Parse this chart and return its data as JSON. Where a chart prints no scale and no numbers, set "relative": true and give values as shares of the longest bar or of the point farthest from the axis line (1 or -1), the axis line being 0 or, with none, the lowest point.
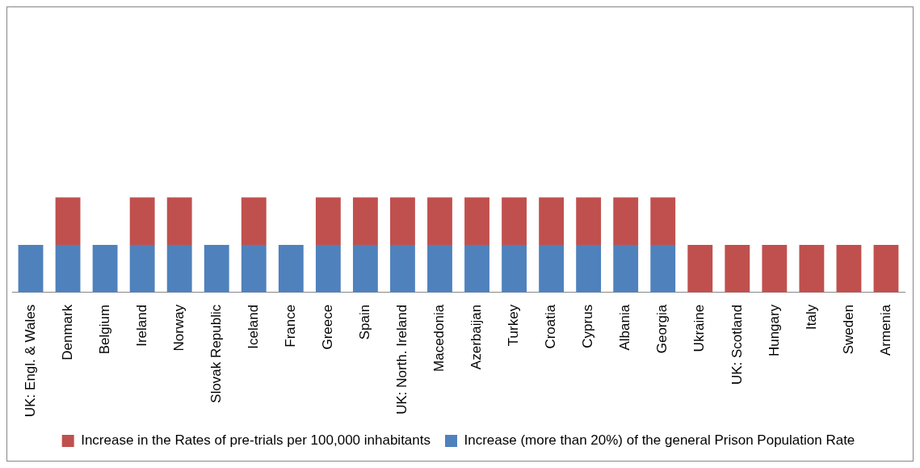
{
  "chart_data": {
    "type": "bar",
    "stacked": true,
    "relative": true,
    "legend": "bottom",
    "categories": [
      "UK: Engl. & Wales",
      "Denmark",
      "Belgium",
      "Ireland",
      "Norway",
      "Slovak Republic",
      "Iceland",
      "France",
      "Greece",
      "Spain",
      "UK: North. Ireland",
      "Macedonia",
      "Azerbaijan",
      "Turkey",
      "Croatia",
      "Cyprus",
      "Albania",
      "Georgia",
      "Ukraine",
      "UK: Scotland",
      "Hungary",
      "Italy",
      "Sweden",
      "Armenia"
    ],
    "series": [
      {
        "name": "Increase (more than 20%) of the general Prison Population Rate",
        "color": "#4f81bd",
        "values": [
          0.5,
          0.5,
          0.5,
          0.5,
          0.5,
          0.5,
          0.5,
          0.5,
          0.5,
          0.5,
          0.5,
          0.5,
          0.5,
          0.5,
          0.5,
          0.5,
          0.5,
          0.5,
          null,
          null,
          null,
          null,
          null,
          null
        ]
      },
      {
        "name": "Increase in the Rates of pre-trials per 100,000 inhabitants",
        "color": "#c0504d",
        "values": [
          null,
          0.5,
          null,
          0.5,
          0.5,
          null,
          0.5,
          null,
          0.5,
          0.5,
          0.5,
          0.5,
          0.5,
          0.5,
          0.5,
          0.5,
          0.5,
          0.5,
          0.5,
          0.5,
          0.5,
          0.5,
          0.5,
          0.5
        ]
      }
    ]
  }
}
